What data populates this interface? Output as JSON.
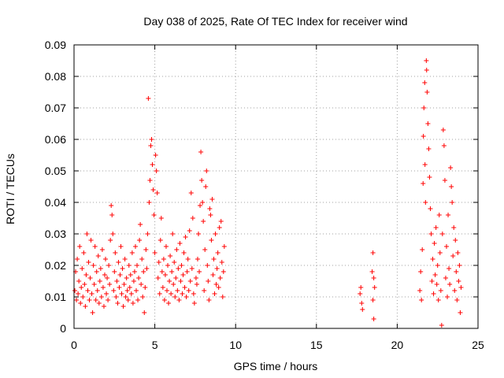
{
  "chart_data": {
    "type": "scatter",
    "title": "Day 038 of 2025, Rate Of TEC Index for receiver wind",
    "xlabel": "GPS time / hours",
    "ylabel": "ROTI / TECUs",
    "xlim": [
      0,
      25
    ],
    "ylim": [
      0,
      0.09
    ],
    "xticks": [
      0,
      5,
      10,
      15,
      20,
      25
    ],
    "xtick_labels": [
      "0",
      "5",
      "10",
      "15",
      "20",
      "25"
    ],
    "yticks": [
      0,
      0.01,
      0.02,
      0.03,
      0.04,
      0.05,
      0.06,
      0.07,
      0.08,
      0.09
    ],
    "ytick_labels": [
      "0",
      "0.01",
      "0.02",
      "0.03",
      "0.04",
      "0.05",
      "0.06",
      "0.07",
      "0.08",
      "0.09"
    ],
    "grid": true,
    "marker": "plus",
    "marker_color": "#ff0000",
    "series": [
      {
        "values": [
          [
            0.05,
            0.012
          ],
          [
            0.1,
            0.018
          ],
          [
            0.15,
            0.009
          ],
          [
            0.2,
            0.022
          ],
          [
            0.25,
            0.011
          ],
          [
            0.3,
            0.015
          ],
          [
            0.35,
            0.026
          ],
          [
            0.4,
            0.008
          ],
          [
            0.45,
            0.013
          ],
          [
            0.5,
            0.019
          ],
          [
            0.55,
            0.01
          ],
          [
            0.6,
            0.024
          ],
          [
            0.65,
            0.014
          ],
          [
            0.7,
            0.007
          ],
          [
            0.75,
            0.017
          ],
          [
            0.8,
            0.03
          ],
          [
            0.85,
            0.012
          ],
          [
            0.9,
            0.021
          ],
          [
            0.95,
            0.009
          ],
          [
            1.0,
            0.016
          ],
          [
            1.05,
            0.028
          ],
          [
            1.1,
            0.011
          ],
          [
            1.15,
            0.005
          ],
          [
            1.2,
            0.02
          ],
          [
            1.25,
            0.014
          ],
          [
            1.3,
            0.026
          ],
          [
            1.35,
            0.009
          ],
          [
            1.4,
            0.018
          ],
          [
            1.45,
            0.012
          ],
          [
            1.5,
            0.023
          ],
          [
            1.55,
            0.008
          ],
          [
            1.6,
            0.015
          ],
          [
            1.65,
            0.019
          ],
          [
            1.7,
            0.01
          ],
          [
            1.75,
            0.025
          ],
          [
            1.8,
            0.013
          ],
          [
            1.85,
            0.007
          ],
          [
            1.9,
            0.017
          ],
          [
            1.95,
            0.022
          ],
          [
            2.0,
            0.011
          ],
          [
            2.05,
            0.016
          ],
          [
            2.1,
            0.009
          ],
          [
            2.15,
            0.02
          ],
          [
            2.2,
            0.014
          ],
          [
            2.25,
            0.028
          ],
          [
            2.3,
            0.039
          ],
          [
            2.35,
            0.036
          ],
          [
            2.4,
            0.03
          ],
          [
            2.45,
            0.012
          ],
          [
            2.5,
            0.018
          ],
          [
            2.55,
            0.024
          ],
          [
            2.6,
            0.01
          ],
          [
            2.65,
            0.015
          ],
          [
            2.7,
            0.008
          ],
          [
            2.75,
            0.021
          ],
          [
            2.8,
            0.013
          ],
          [
            2.85,
            0.017
          ],
          [
            2.9,
            0.026
          ],
          [
            2.95,
            0.011
          ],
          [
            3.0,
            0.019
          ],
          [
            3.05,
            0.007
          ],
          [
            3.1,
            0.014
          ],
          [
            3.15,
            0.022
          ],
          [
            3.2,
            0.01
          ],
          [
            3.25,
            0.016
          ],
          [
            3.3,
            0.012
          ],
          [
            3.35,
            0.009
          ],
          [
            3.4,
            0.02
          ],
          [
            3.45,
            0.013
          ],
          [
            3.5,
            0.017
          ],
          [
            3.55,
            0.011
          ],
          [
            3.6,
            0.024
          ],
          [
            3.65,
            0.008
          ],
          [
            3.7,
            0.015
          ],
          [
            3.75,
            0.018
          ],
          [
            3.8,
            0.026
          ],
          [
            3.85,
            0.012
          ],
          [
            3.9,
            0.02
          ],
          [
            3.95,
            0.009
          ],
          [
            4.0,
            0.016
          ],
          [
            4.05,
            0.028
          ],
          [
            4.1,
            0.033
          ],
          [
            4.15,
            0.014
          ],
          [
            4.2,
            0.022
          ],
          [
            4.25,
            0.01
          ],
          [
            4.3,
            0.018
          ],
          [
            4.35,
            0.005
          ],
          [
            4.4,
            0.013
          ],
          [
            4.45,
            0.025
          ],
          [
            4.5,
            0.019
          ],
          [
            4.55,
            0.03
          ],
          [
            4.6,
            0.073
          ],
          [
            4.65,
            0.04
          ],
          [
            4.7,
            0.047
          ],
          [
            4.75,
            0.058
          ],
          [
            4.8,
            0.06
          ],
          [
            4.85,
            0.052
          ],
          [
            4.9,
            0.044
          ],
          [
            4.95,
            0.036
          ],
          [
            5.0,
            0.024
          ],
          [
            5.05,
            0.055
          ],
          [
            5.1,
            0.05
          ],
          [
            5.15,
            0.043
          ],
          [
            5.2,
            0.016
          ],
          [
            5.25,
            0.021
          ],
          [
            5.3,
            0.011
          ],
          [
            5.35,
            0.028
          ],
          [
            5.4,
            0.035
          ],
          [
            5.45,
            0.018
          ],
          [
            5.5,
            0.013
          ],
          [
            5.55,
            0.022
          ],
          [
            5.6,
            0.009
          ],
          [
            5.65,
            0.017
          ],
          [
            5.7,
            0.026
          ],
          [
            5.75,
            0.012
          ],
          [
            5.8,
            0.02
          ],
          [
            5.85,
            0.008
          ],
          [
            5.9,
            0.015
          ],
          [
            5.95,
            0.023
          ],
          [
            6.0,
            0.011
          ],
          [
            6.05,
            0.018
          ],
          [
            6.1,
            0.03
          ],
          [
            6.15,
            0.014
          ],
          [
            6.2,
            0.021
          ],
          [
            6.25,
            0.01
          ],
          [
            6.3,
            0.016
          ],
          [
            6.35,
            0.025
          ],
          [
            6.4,
            0.012
          ],
          [
            6.45,
            0.019
          ],
          [
            6.5,
            0.009
          ],
          [
            6.55,
            0.027
          ],
          [
            6.6,
            0.015
          ],
          [
            6.65,
            0.02
          ],
          [
            6.7,
            0.011
          ],
          [
            6.75,
            0.017
          ],
          [
            6.8,
            0.024
          ],
          [
            6.85,
            0.013
          ],
          [
            6.9,
            0.029
          ],
          [
            6.95,
            0.01
          ],
          [
            7.0,
            0.018
          ],
          [
            7.05,
            0.022
          ],
          [
            7.1,
            0.012
          ],
          [
            7.15,
            0.031
          ],
          [
            7.2,
            0.015
          ],
          [
            7.25,
            0.043
          ],
          [
            7.3,
            0.019
          ],
          [
            7.35,
            0.035
          ],
          [
            7.4,
            0.011
          ],
          [
            7.45,
            0.008
          ],
          [
            7.55,
            0.016
          ],
          [
            7.6,
            0.014
          ],
          [
            7.65,
            0.022
          ],
          [
            7.7,
            0.03
          ],
          [
            7.75,
            0.018
          ],
          [
            7.8,
            0.039
          ],
          [
            7.85,
            0.056
          ],
          [
            7.9,
            0.047
          ],
          [
            7.95,
            0.04
          ],
          [
            8.0,
            0.034
          ],
          [
            8.05,
            0.012
          ],
          [
            8.1,
            0.025
          ],
          [
            8.15,
            0.045
          ],
          [
            8.2,
            0.05
          ],
          [
            8.25,
            0.02
          ],
          [
            8.3,
            0.015
          ],
          [
            8.35,
            0.009
          ],
          [
            8.4,
            0.038
          ],
          [
            8.45,
            0.036
          ],
          [
            8.5,
            0.028
          ],
          [
            8.55,
            0.041
          ],
          [
            8.6,
            0.017
          ],
          [
            8.65,
            0.022
          ],
          [
            8.7,
            0.011
          ],
          [
            8.75,
            0.03
          ],
          [
            8.8,
            0.014
          ],
          [
            8.85,
            0.019
          ],
          [
            8.9,
            0.024
          ],
          [
            8.95,
            0.013
          ],
          [
            9.0,
            0.032
          ],
          [
            9.05,
            0.016
          ],
          [
            9.1,
            0.034
          ],
          [
            9.15,
            0.021
          ],
          [
            9.2,
            0.01
          ],
          [
            9.25,
            0.018
          ],
          [
            9.3,
            0.026
          ],
          [
            17.7,
            0.011
          ],
          [
            17.75,
            0.013
          ],
          [
            17.8,
            0.008
          ],
          [
            17.85,
            0.006
          ],
          [
            18.45,
            0.018
          ],
          [
            18.5,
            0.024
          ],
          [
            18.55,
            0.016
          ],
          [
            18.6,
            0.013
          ],
          [
            18.5,
            0.009
          ],
          [
            18.55,
            0.003
          ],
          [
            21.4,
            0.012
          ],
          [
            21.45,
            0.018
          ],
          [
            21.5,
            0.009
          ],
          [
            21.55,
            0.025
          ],
          [
            21.6,
            0.046
          ],
          [
            21.62,
            0.061
          ],
          [
            21.65,
            0.07
          ],
          [
            21.7,
            0.078
          ],
          [
            21.72,
            0.052
          ],
          [
            21.75,
            0.04
          ],
          [
            21.8,
            0.085
          ],
          [
            21.82,
            0.082
          ],
          [
            21.85,
            0.075
          ],
          [
            21.9,
            0.065
          ],
          [
            21.95,
            0.057
          ],
          [
            22.0,
            0.048
          ],
          [
            22.05,
            0.038
          ],
          [
            22.1,
            0.03
          ],
          [
            22.15,
            0.015
          ],
          [
            22.2,
            0.022
          ],
          [
            22.25,
            0.011
          ],
          [
            22.3,
            0.027
          ],
          [
            22.35,
            0.017
          ],
          [
            22.4,
            0.032
          ],
          [
            22.45,
            0.014
          ],
          [
            22.5,
            0.02
          ],
          [
            22.55,
            0.009
          ],
          [
            22.6,
            0.036
          ],
          [
            22.65,
            0.024
          ],
          [
            22.7,
            0.012
          ],
          [
            22.75,
            0.001
          ],
          [
            22.8,
            0.03
          ],
          [
            22.85,
            0.063
          ],
          [
            22.9,
            0.058
          ],
          [
            22.95,
            0.047
          ],
          [
            23.0,
            0.016
          ],
          [
            23.05,
            0.026
          ],
          [
            23.1,
            0.01
          ],
          [
            23.15,
            0.036
          ],
          [
            23.2,
            0.019
          ],
          [
            23.25,
            0.014
          ],
          [
            23.3,
            0.051
          ],
          [
            23.35,
            0.045
          ],
          [
            23.4,
            0.04
          ],
          [
            23.45,
            0.023
          ],
          [
            23.5,
            0.032
          ],
          [
            23.55,
            0.012
          ],
          [
            23.6,
            0.028
          ],
          [
            23.65,
            0.018
          ],
          [
            23.7,
            0.009
          ],
          [
            23.75,
            0.024
          ],
          [
            23.8,
            0.015
          ],
          [
            23.85,
            0.02
          ],
          [
            23.9,
            0.005
          ],
          [
            23.95,
            0.013
          ]
        ]
      }
    ]
  }
}
